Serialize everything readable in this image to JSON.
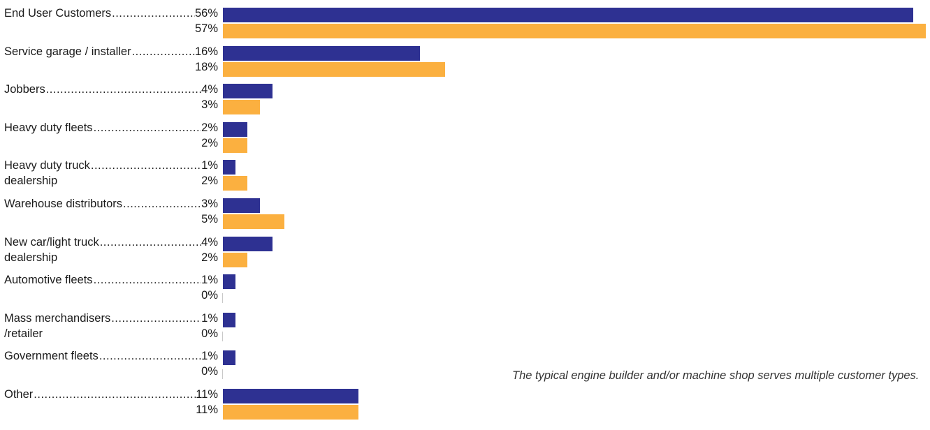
{
  "chart_data": {
    "type": "bar",
    "orientation": "horizontal",
    "categories": [
      "End User Customers",
      "Service garage / installer",
      "Jobbers",
      "Heavy duty fleets",
      "Heavy duty truck dealership",
      "Warehouse distributors",
      "New car/light truck dealership",
      "Automotive fleets",
      "Mass merchandisers /retailer",
      "Government fleets",
      "Other"
    ],
    "category_lines": [
      [
        "End User Customers",
        ""
      ],
      [
        "Service garage / installer",
        ""
      ],
      [
        "Jobbers",
        ""
      ],
      [
        "Heavy duty fleets",
        ""
      ],
      [
        "Heavy duty truck",
        "dealership"
      ],
      [
        "Warehouse distributors",
        ""
      ],
      [
        "New car/light truck",
        "dealership"
      ],
      [
        "Automotive fleets",
        ""
      ],
      [
        "Mass merchandisers",
        "/retailer"
      ],
      [
        "Government fleets",
        ""
      ],
      [
        "Other",
        ""
      ]
    ],
    "series": [
      {
        "color": "#2e3192",
        "values": [
          56,
          16,
          4,
          2,
          1,
          3,
          4,
          1,
          1,
          1,
          11
        ],
        "labels": [
          "56%",
          "16%",
          "4%",
          "2%",
          "1%",
          "3%",
          "4%",
          "1%",
          "1%",
          "1%",
          "11%"
        ]
      },
      {
        "color": "#fbb040",
        "values": [
          57,
          18,
          3,
          2,
          2,
          5,
          2,
          0,
          0,
          0,
          11
        ],
        "labels": [
          "57%",
          "18%",
          "3%",
          "2%",
          "2%",
          "5%",
          "2%",
          "0%",
          "0%",
          "0%",
          "11%"
        ]
      }
    ],
    "xlim": [
      0,
      57
    ],
    "grid": false,
    "legend": "none"
  },
  "caption": "The typical engine builder and/or machine shop serves multiple customer types."
}
